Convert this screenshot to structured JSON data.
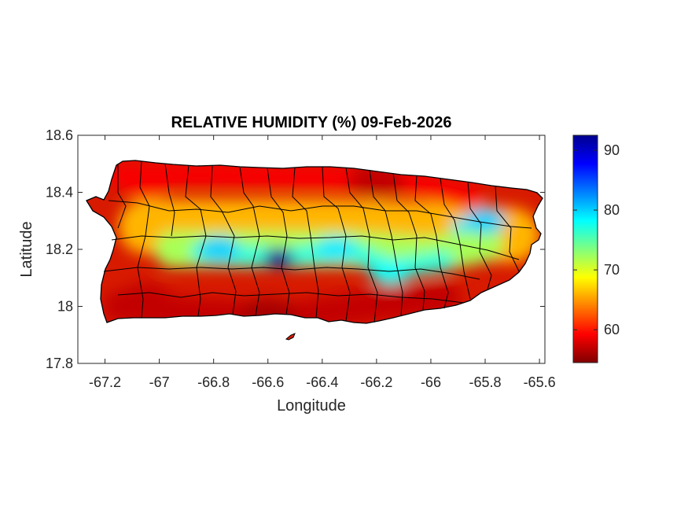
{
  "chart_data": {
    "type": "heatmap",
    "title": "RELATIVE HUMIDITY (%) 09-Feb-2026",
    "xlabel": "Longitude",
    "ylabel": "Latitude",
    "xlim": [
      -67.3,
      -65.58
    ],
    "ylim": [
      17.8,
      18.6
    ],
    "xticks": [
      -67.2,
      -67,
      -66.8,
      -66.6,
      -66.4,
      -66.2,
      -66,
      -65.8,
      -65.6
    ],
    "xtick_labels": [
      "-67.2",
      "-67",
      "-66.8",
      "-66.6",
      "-66.4",
      "-66.2",
      "-66",
      "-65.8",
      "-65.6"
    ],
    "yticks": [
      17.8,
      18,
      18.2,
      18.4,
      18.6
    ],
    "ytick_labels": [
      "17.8",
      "18",
      "18.2",
      "18.4",
      "18.6"
    ],
    "colorbar": {
      "colormap": "jet",
      "range": [
        54.5,
        92.5
      ],
      "ticks": [
        60,
        70,
        80,
        90
      ],
      "tick_labels": [
        "60",
        "70",
        "80",
        "90"
      ]
    },
    "features": [
      {
        "name": "moist-core-central-south",
        "lon": -66.56,
        "lat": 18.17,
        "value": 92
      },
      {
        "name": "moist-band-west",
        "lon": -66.78,
        "lat": 18.2,
        "value": 80
      },
      {
        "name": "moist-band-central",
        "lon": -66.35,
        "lat": 18.2,
        "value": 79
      },
      {
        "name": "moist-band-east-central",
        "lon": -66.15,
        "lat": 18.12,
        "value": 78
      },
      {
        "name": "moist-peak-east",
        "lon": -65.8,
        "lat": 18.3,
        "value": 80
      },
      {
        "name": "dry-south-coast",
        "lon": -66.6,
        "lat": 17.97,
        "value": 56
      },
      {
        "name": "dry-southwest",
        "lon": -67.05,
        "lat": 18.02,
        "value": 57
      },
      {
        "name": "dry-north-coast",
        "lon": -66.2,
        "lat": 18.44,
        "value": 57
      },
      {
        "name": "dry-northwest",
        "lon": -67.05,
        "lat": 18.44,
        "value": 59
      }
    ]
  },
  "colors": {
    "frame": "#262626",
    "land_base": "#d71a00",
    "border": "#000000"
  }
}
